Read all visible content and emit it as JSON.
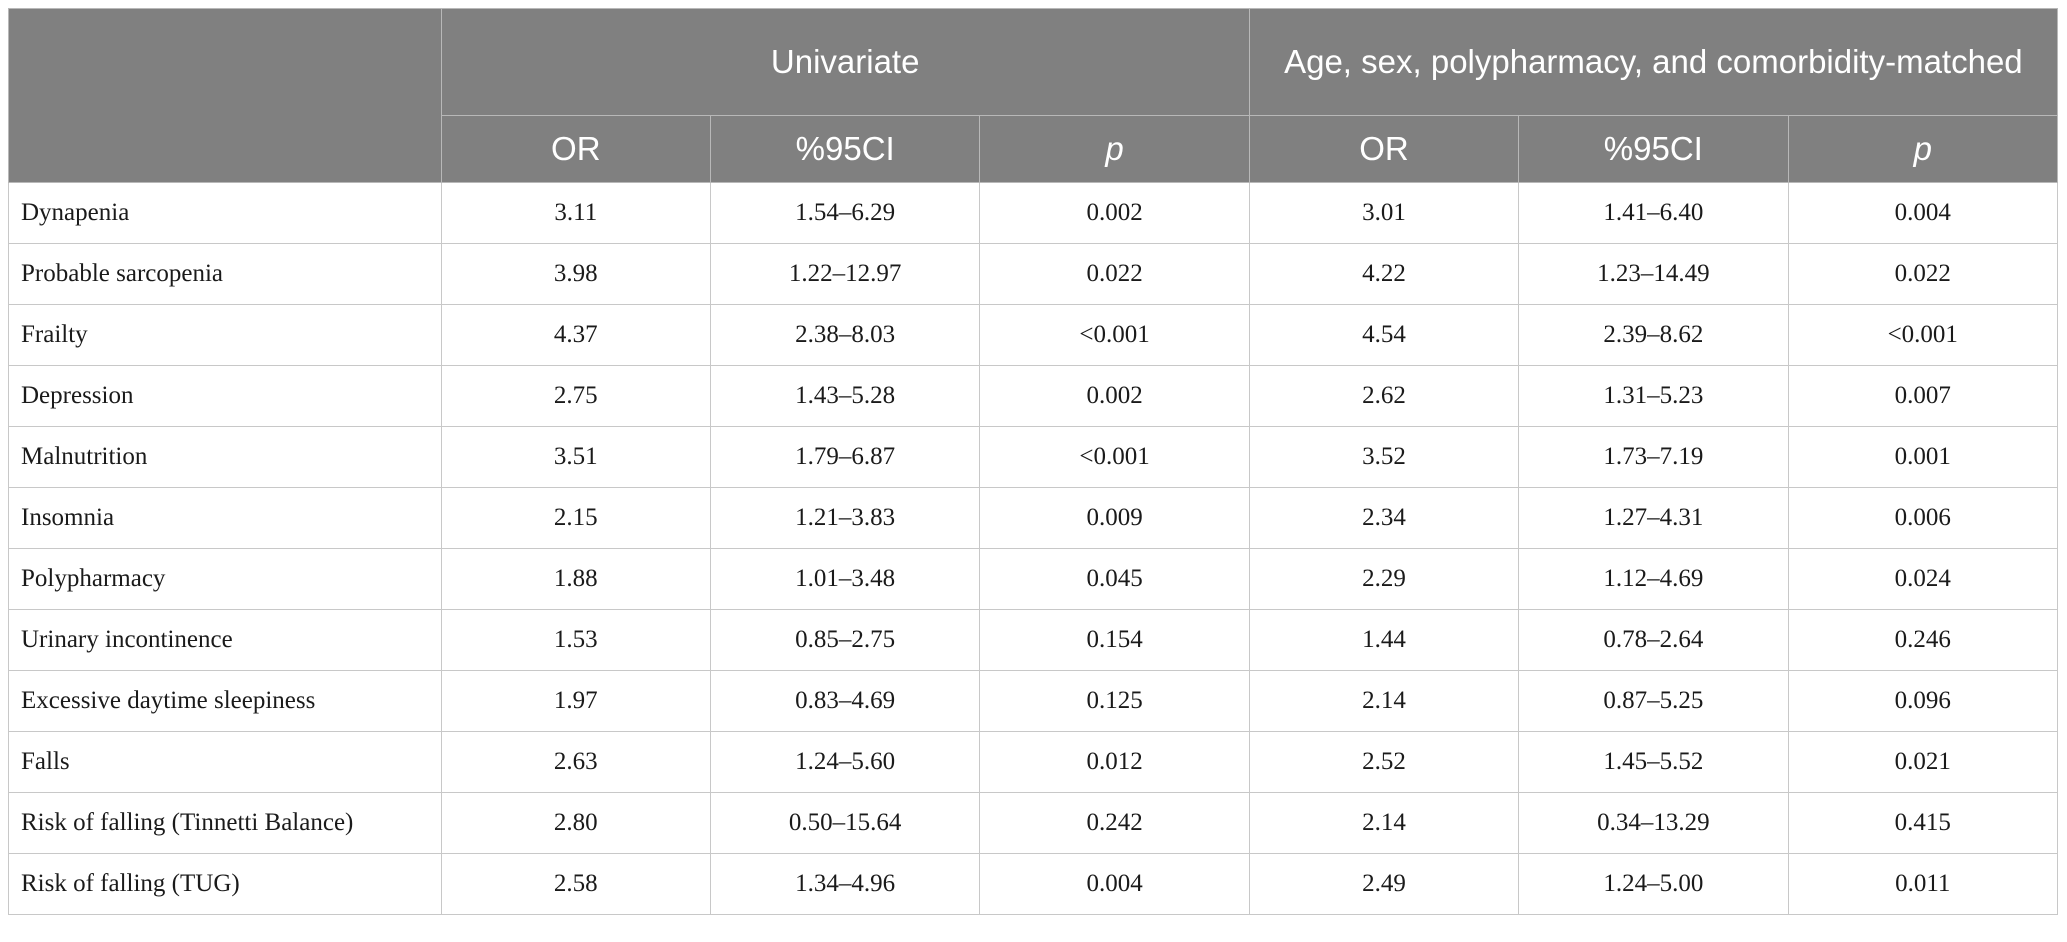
{
  "header": {
    "group1": "Univariate",
    "group2": "Age, sex, polypharmacy, and comorbidity-matched",
    "sub": [
      "OR",
      "%95CI",
      "p",
      "OR",
      "%95CI",
      "p"
    ]
  },
  "rows": [
    {
      "label": "Dynapenia",
      "vals": [
        "3.11",
        "1.54–6.29",
        "0.002",
        "3.01",
        "1.41–6.40",
        "0.004"
      ]
    },
    {
      "label": "Probable sarcopenia",
      "vals": [
        "3.98",
        "1.22–12.97",
        "0.022",
        "4.22",
        "1.23–14.49",
        "0.022"
      ]
    },
    {
      "label": "Frailty",
      "vals": [
        "4.37",
        "2.38–8.03",
        "<0.001",
        "4.54",
        "2.39–8.62",
        "<0.001"
      ]
    },
    {
      "label": "Depression",
      "vals": [
        "2.75",
        "1.43–5.28",
        "0.002",
        "2.62",
        "1.31–5.23",
        "0.007"
      ]
    },
    {
      "label": "Malnutrition",
      "vals": [
        "3.51",
        "1.79–6.87",
        "<0.001",
        "3.52",
        "1.73–7.19",
        "0.001"
      ]
    },
    {
      "label": "Insomnia",
      "vals": [
        "2.15",
        "1.21–3.83",
        "0.009",
        "2.34",
        "1.27–4.31",
        "0.006"
      ]
    },
    {
      "label": "Polypharmacy",
      "vals": [
        "1.88",
        "1.01–3.48",
        "0.045",
        "2.29",
        "1.12–4.69",
        "0.024"
      ]
    },
    {
      "label": "Urinary incontinence",
      "vals": [
        "1.53",
        "0.85–2.75",
        "0.154",
        "1.44",
        "0.78–2.64",
        "0.246"
      ]
    },
    {
      "label": "Excessive daytime sleepiness",
      "vals": [
        "1.97",
        "0.83–4.69",
        "0.125",
        "2.14",
        "0.87–5.25",
        "0.096"
      ]
    },
    {
      "label": "Falls",
      "vals": [
        "2.63",
        "1.24–5.60",
        "0.012",
        "2.52",
        "1.45–5.52",
        "0.021"
      ]
    },
    {
      "label": "Risk of falling (Tinnetti Balance)",
      "vals": [
        "2.80",
        "0.50–15.64",
        "0.242",
        "2.14",
        "0.34–13.29",
        "0.415"
      ]
    },
    {
      "label": "Risk of falling (TUG)",
      "vals": [
        "2.58",
        "1.34–4.96",
        "0.004",
        "2.49",
        "1.24–5.00",
        "0.011"
      ]
    }
  ]
}
